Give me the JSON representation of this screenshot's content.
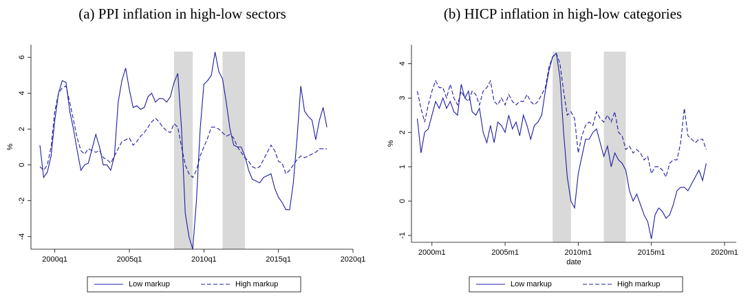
{
  "chart_data": [
    {
      "type": "line",
      "title": "(a) PPI inflation in high-low sectors",
      "ylabel": "%",
      "x": [
        1999,
        1999.25,
        1999.5,
        1999.75,
        2000,
        2000.25,
        2000.5,
        2000.75,
        2001,
        2001.25,
        2001.5,
        2001.75,
        2002,
        2002.25,
        2002.5,
        2002.75,
        2003,
        2003.25,
        2003.5,
        2003.75,
        2004,
        2004.25,
        2004.5,
        2004.75,
        2005,
        2005.25,
        2005.5,
        2005.75,
        2006,
        2006.25,
        2006.5,
        2006.75,
        2007,
        2007.25,
        2007.5,
        2007.75,
        2008,
        2008.25,
        2008.5,
        2008.75,
        2009,
        2009.25,
        2009.5,
        2009.75,
        2010,
        2010.25,
        2010.5,
        2010.75,
        2011,
        2011.25,
        2011.5,
        2011.75,
        2012,
        2012.25,
        2012.5,
        2012.75,
        2013,
        2013.25,
        2013.5,
        2013.75,
        2014,
        2014.25,
        2014.5,
        2014.75,
        2015,
        2015.25,
        2015.5,
        2015.75,
        2016,
        2016.25,
        2016.5,
        2016.75,
        2017,
        2017.25,
        2017.5,
        2017.75,
        2018,
        2018.25
      ],
      "series": [
        {
          "name": "Low markup",
          "color": "#1c1ca0",
          "dash": "solid",
          "values": [
            1.1,
            -0.7,
            -0.4,
            0.5,
            2.5,
            4.0,
            4.7,
            4.6,
            3.0,
            2.0,
            0.8,
            -0.3,
            0.0,
            0.1,
            0.9,
            1.7,
            1.0,
            0.0,
            0.0,
            -0.3,
            0.5,
            3.5,
            4.7,
            5.4,
            4.2,
            3.2,
            3.3,
            3.1,
            3.2,
            3.8,
            4.0,
            3.5,
            3.7,
            3.7,
            3.5,
            3.8,
            4.6,
            5.1,
            2.0,
            -2.7,
            -4.0,
            -4.7,
            -2.0,
            2.0,
            4.5,
            4.7,
            5.0,
            6.3,
            5.2,
            4.8,
            3.5,
            2.0,
            1.1,
            1.0,
            1.0,
            0.5,
            -0.3,
            -0.8,
            -0.9,
            -1.0,
            -0.7,
            -0.6,
            -0.5,
            -1.3,
            -1.8,
            -2.1,
            -2.5,
            -2.5,
            -1.0,
            1.5,
            4.4,
            3.0,
            2.7,
            2.5,
            1.4,
            2.5,
            3.2,
            2.1
          ]
        },
        {
          "name": "High markup",
          "color": "#1c1ca0",
          "dash": "dashed",
          "values": [
            -0.1,
            -0.3,
            0.0,
            1.0,
            3.0,
            4.0,
            4.3,
            4.4,
            3.5,
            2.5,
            1.5,
            0.8,
            0.6,
            0.9,
            0.8,
            0.7,
            0.8,
            0.4,
            0.3,
            0.1,
            0.5,
            0.9,
            1.3,
            1.4,
            1.5,
            1.1,
            1.3,
            1.6,
            1.8,
            2.1,
            2.4,
            2.6,
            2.4,
            2.1,
            1.9,
            1.8,
            2.3,
            2.1,
            1.0,
            0.0,
            -0.5,
            -0.7,
            -0.3,
            0.5,
            1.0,
            1.5,
            2.1,
            2.1,
            2.0,
            1.8,
            1.6,
            1.7,
            1.5,
            1.0,
            0.7,
            0.4,
            0.2,
            -0.1,
            -0.2,
            -0.1,
            0.3,
            0.7,
            1.1,
            0.8,
            0.2,
            0.1,
            -0.5,
            -0.3,
            0.0,
            0.3,
            0.5,
            0.4,
            0.5,
            0.6,
            0.7,
            0.9,
            0.9,
            0.9
          ]
        }
      ],
      "bands": [
        [
          2008.0,
          2009.25
        ],
        [
          2011.25,
          2012.75
        ]
      ],
      "band_color": "#d9d9d9",
      "xlim": [
        1998.4,
        2020.0
      ],
      "ylim": [
        -4.7,
        6.7
      ],
      "xticks": [
        {
          "value": 2000,
          "label": "2000q1"
        },
        {
          "value": 2005,
          "label": "2005q1"
        },
        {
          "value": 2010,
          "label": "2010q1"
        },
        {
          "value": 2015,
          "label": "2015q1"
        },
        {
          "value": 2020,
          "label": "2020q1"
        }
      ],
      "yticks": [
        -4,
        -2,
        0,
        2,
        4,
        6
      ]
    },
    {
      "type": "line",
      "title": "(b) HICP inflation in high-low categories",
      "ylabel": "%",
      "xlabel": "date",
      "x": [
        1999,
        1999.25,
        1999.5,
        1999.75,
        2000,
        2000.25,
        2000.5,
        2000.75,
        2001,
        2001.25,
        2001.5,
        2001.75,
        2002,
        2002.25,
        2002.5,
        2002.75,
        2003,
        2003.25,
        2003.5,
        2003.75,
        2004,
        2004.25,
        2004.5,
        2004.75,
        2005,
        2005.25,
        2005.5,
        2005.75,
        2006,
        2006.25,
        2006.5,
        2006.75,
        2007,
        2007.25,
        2007.5,
        2007.75,
        2008,
        2008.25,
        2008.5,
        2008.75,
        2009,
        2009.25,
        2009.5,
        2009.75,
        2010,
        2010.25,
        2010.5,
        2010.75,
        2011,
        2011.25,
        2011.5,
        2011.75,
        2012,
        2012.25,
        2012.5,
        2012.75,
        2013,
        2013.25,
        2013.5,
        2013.75,
        2014,
        2014.25,
        2014.5,
        2014.75,
        2015,
        2015.25,
        2015.5,
        2015.75,
        2016,
        2016.25,
        2016.5,
        2016.75,
        2017,
        2017.25,
        2017.5,
        2017.75,
        2018,
        2018.25,
        2018.5,
        2018.75
      ],
      "series": [
        {
          "name": "Low markup",
          "color": "#1c1ca0",
          "dash": "solid",
          "values": [
            2.4,
            1.4,
            2.0,
            2.1,
            2.5,
            2.9,
            2.7,
            3.0,
            2.7,
            2.9,
            2.6,
            2.5,
            3.4,
            3.0,
            3.2,
            2.6,
            2.5,
            2.7,
            2.0,
            1.7,
            2.2,
            1.7,
            2.3,
            2.2,
            2.0,
            2.5,
            2.1,
            2.3,
            1.9,
            2.5,
            2.2,
            1.8,
            2.2,
            2.3,
            2.5,
            3.2,
            3.8,
            4.2,
            4.3,
            3.6,
            2.0,
            0.7,
            0.0,
            -0.2,
            0.8,
            1.3,
            1.8,
            1.8,
            2.0,
            2.1,
            1.7,
            1.3,
            1.6,
            1.0,
            1.4,
            1.2,
            1.1,
            0.9,
            0.3,
            0.0,
            0.2,
            -0.1,
            -0.4,
            -0.6,
            -1.1,
            -0.4,
            -0.2,
            -0.3,
            -0.5,
            -0.4,
            -0.1,
            0.3,
            0.4,
            0.4,
            0.3,
            0.5,
            0.7,
            0.9,
            0.6,
            1.1
          ]
        },
        {
          "name": "High markup",
          "color": "#1c1ca0",
          "dash": "dashed",
          "values": [
            3.2,
            2.7,
            2.3,
            2.8,
            3.2,
            3.5,
            3.3,
            3.3,
            3.0,
            3.4,
            3.0,
            2.8,
            3.2,
            3.0,
            2.9,
            3.2,
            3.1,
            2.8,
            3.2,
            3.3,
            3.5,
            2.9,
            2.8,
            3.0,
            2.8,
            3.1,
            2.9,
            2.8,
            2.9,
            2.9,
            3.1,
            2.9,
            2.8,
            2.9,
            3.1,
            3.3,
            3.9,
            4.2,
            4.3,
            4.0,
            3.2,
            2.5,
            2.6,
            2.4,
            1.4,
            1.9,
            2.2,
            2.3,
            2.2,
            2.6,
            2.4,
            2.3,
            2.5,
            2.3,
            2.6,
            2.0,
            1.9,
            1.5,
            1.6,
            1.4,
            1.5,
            1.4,
            1.2,
            1.3,
            0.8,
            1.0,
            1.0,
            0.9,
            0.7,
            1.1,
            1.2,
            1.2,
            1.7,
            2.7,
            1.9,
            1.8,
            1.7,
            1.8,
            1.8,
            1.5
          ]
        }
      ],
      "bands": [
        [
          2008.25,
          2009.5
        ],
        [
          2011.75,
          2013.25
        ]
      ],
      "band_color": "#d9d9d9",
      "xlim": [
        1998.6,
        2020.8
      ],
      "ylim": [
        -1.2,
        4.55
      ],
      "xticks": [
        {
          "value": 2000,
          "label": "2000m1"
        },
        {
          "value": 2005,
          "label": "2005m1"
        },
        {
          "value": 2010,
          "label": "2010m1"
        },
        {
          "value": 2015,
          "label": "2015m1"
        },
        {
          "value": 2020,
          "label": "2020m1"
        }
      ],
      "yticks": [
        -1,
        0,
        1,
        2,
        3,
        4
      ]
    }
  ]
}
